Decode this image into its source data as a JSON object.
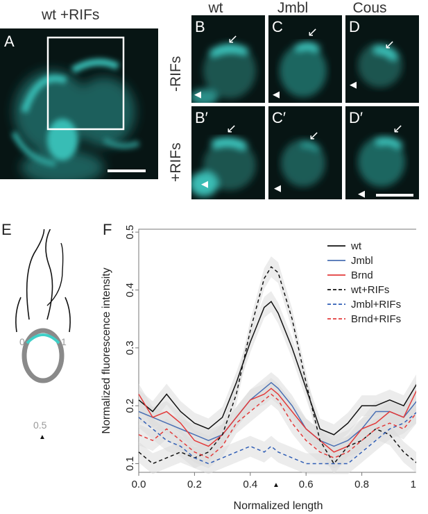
{
  "panels": {
    "A": {
      "letter": "A",
      "title": "wt +RIFs"
    },
    "B": {
      "letter": "B",
      "column": "wt"
    },
    "C": {
      "letter": "C",
      "column": "Jmbl"
    },
    "D": {
      "letter": "D",
      "column": "Cous"
    },
    "Bp": {
      "letter": "B′"
    },
    "Cp": {
      "letter": "C′"
    },
    "Dp": {
      "letter": "D′"
    },
    "E": {
      "letter": "E"
    },
    "F": {
      "letter": "F"
    },
    "row_labels": {
      "top": "-RIFs",
      "bottom": "+RIFs"
    }
  },
  "glyphs": {
    "arrow": "↙",
    "arrowhead": "◀"
  },
  "schematic": {
    "label_left": "0",
    "label_right": "1",
    "label_mid": "0.5",
    "marker": "▲"
  },
  "colors": {
    "cyan": "#3fd0c8",
    "micro_bg": "#071514",
    "wt": "#111111",
    "jmbl": "#4a6fb3",
    "brnd": "#e33a3a",
    "band": "#dcdcdc"
  },
  "chart_data": {
    "type": "line",
    "xlabel": "Normalized length",
    "ylabel": "Normalized fluorescence intensity",
    "xlim": [
      0.0,
      1.0
    ],
    "ylim": [
      0.085,
      0.505
    ],
    "xticks": [
      "0.0",
      "0.2",
      "0.4",
      "0.6",
      "0.8",
      "1.0"
    ],
    "yticks": [
      "0.1",
      "0.2",
      "0.3",
      "0.4",
      "0.5"
    ],
    "x_marker": "▲",
    "legend_position": "top-right",
    "x": [
      0.0,
      0.05,
      0.1,
      0.15,
      0.2,
      0.25,
      0.3,
      0.35,
      0.4,
      0.45,
      0.475,
      0.5,
      0.55,
      0.6,
      0.65,
      0.7,
      0.75,
      0.8,
      0.85,
      0.9,
      0.95,
      1.0
    ],
    "series": [
      {
        "name": "wt",
        "color": "#111111",
        "dash": "solid",
        "values": [
          0.21,
          0.19,
          0.22,
          0.19,
          0.17,
          0.16,
          0.18,
          0.24,
          0.31,
          0.37,
          0.38,
          0.36,
          0.3,
          0.23,
          0.16,
          0.15,
          0.17,
          0.2,
          0.2,
          0.21,
          0.2,
          0.24
        ]
      },
      {
        "name": "Jmbl",
        "color": "#4a6fb3",
        "dash": "solid",
        "values": [
          0.19,
          0.18,
          0.17,
          0.16,
          0.15,
          0.14,
          0.15,
          0.18,
          0.21,
          0.23,
          0.24,
          0.23,
          0.2,
          0.16,
          0.14,
          0.13,
          0.14,
          0.16,
          0.19,
          0.19,
          0.18,
          0.21
        ]
      },
      {
        "name": "Brnd",
        "color": "#e33a3a",
        "dash": "solid",
        "values": [
          0.22,
          0.18,
          0.19,
          0.17,
          0.14,
          0.13,
          0.15,
          0.18,
          0.21,
          0.22,
          0.23,
          0.22,
          0.19,
          0.16,
          0.14,
          0.12,
          0.13,
          0.16,
          0.17,
          0.19,
          0.18,
          0.23
        ]
      },
      {
        "name": "wt+RIFs",
        "color": "#111111",
        "dash": "dashed",
        "values": [
          0.12,
          0.1,
          0.11,
          0.12,
          0.11,
          0.12,
          0.15,
          0.22,
          0.33,
          0.42,
          0.44,
          0.43,
          0.35,
          0.24,
          0.14,
          0.1,
          0.13,
          0.14,
          0.16,
          0.15,
          0.12,
          0.1
        ]
      },
      {
        "name": "Jmbl+RIFs",
        "color": "#2f5db5",
        "dash": "dashed",
        "values": [
          0.18,
          0.16,
          0.14,
          0.13,
          0.11,
          0.1,
          0.11,
          0.12,
          0.13,
          0.12,
          0.13,
          0.12,
          0.11,
          0.1,
          0.1,
          0.1,
          0.1,
          0.12,
          0.14,
          0.16,
          0.17,
          0.19
        ]
      },
      {
        "name": "Brnd+RIFs",
        "color": "#e33a3a",
        "dash": "dashed",
        "values": [
          0.15,
          0.14,
          0.16,
          0.14,
          0.12,
          0.11,
          0.13,
          0.17,
          0.19,
          0.21,
          0.22,
          0.21,
          0.17,
          0.14,
          0.12,
          0.11,
          0.12,
          0.14,
          0.16,
          0.17,
          0.16,
          0.19
        ]
      }
    ]
  }
}
